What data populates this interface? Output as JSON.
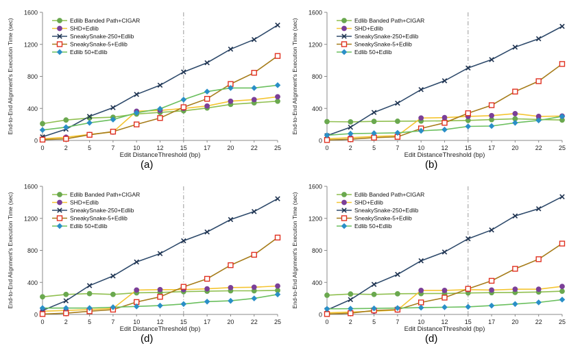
{
  "series_styles": [
    {
      "name": "Edlib Banded Path+CIGAR",
      "line": "#8fbf4f",
      "marker": "circle",
      "fill": "#6aa84f",
      "stroke": "#6aa84f"
    },
    {
      "name": "SHD+Edlib",
      "line": "#f4c430",
      "marker": "circle",
      "fill": "#7b3f98",
      "stroke": "#7b3f98"
    },
    {
      "name": "SneakySnake-250+Edlib",
      "line": "#2e4a6b",
      "marker": "x",
      "fill": "none",
      "stroke": "#1f3350"
    },
    {
      "name": "SneakySnake-5+Edlib",
      "line": "#a67c1a",
      "marker": "square",
      "fill": "#ffffff",
      "stroke": "#e03020"
    },
    {
      "name": "Edlib 50+Edlib",
      "line": "#6abf5e",
      "marker": "diamond",
      "fill": "#2a8fc7",
      "stroke": "#2a8fc7"
    }
  ],
  "chart_data": [
    {
      "type": "line",
      "caption": "(a)",
      "xlabel": "Edit DistanceThreshold (bp)",
      "ylabel": "End-to-End Alignment's Execution Time (sec)",
      "categories": [
        "0",
        "2",
        "5",
        "7",
        "10",
        "12",
        "15",
        "17",
        "20",
        "22",
        "25"
      ],
      "yticks": [
        "0",
        "400",
        "800",
        "1200",
        "1600"
      ],
      "ylim": [
        0,
        1600
      ],
      "vline_at": "15",
      "series": [
        {
          "name": "Edlib Banded Path+CIGAR",
          "values": [
            210,
            255,
            280,
            290,
            330,
            350,
            370,
            405,
            450,
            470,
            490
          ]
        },
        {
          "name": "SHD+Edlib",
          "values": [
            20,
            40,
            75,
            105,
            365,
            375,
            400,
            430,
            490,
            510,
            545
          ]
        },
        {
          "name": "SneakySnake-250+Edlib",
          "values": [
            45,
            140,
            300,
            410,
            575,
            690,
            855,
            970,
            1140,
            1260,
            1440
          ]
        },
        {
          "name": "SneakySnake-5+Edlib",
          "values": [
            10,
            20,
            70,
            110,
            200,
            280,
            415,
            520,
            705,
            845,
            1055
          ]
        },
        {
          "name": "Edlib 50+Edlib",
          "values": [
            130,
            165,
            220,
            260,
            345,
            395,
            510,
            610,
            655,
            655,
            690
          ]
        }
      ]
    },
    {
      "type": "line",
      "caption": "(b)",
      "xlabel": "Edit DistanceThreshold (bp)",
      "ylabel": "End-to-End Alignment's Execution Time (sec)",
      "categories": [
        "0",
        "2",
        "5",
        "7",
        "10",
        "12",
        "15",
        "17",
        "20",
        "22",
        "25"
      ],
      "yticks": [
        "0",
        "400",
        "800",
        "1200",
        "1600"
      ],
      "ylim": [
        0,
        1600
      ],
      "vline_at": "15",
      "series": [
        {
          "name": "Edlib Banded Path+CIGAR",
          "values": [
            235,
            232,
            238,
            240,
            242,
            245,
            250,
            260,
            270,
            262,
            255
          ]
        },
        {
          "name": "SHD+Edlib",
          "values": [
            20,
            35,
            50,
            60,
            280,
            285,
            300,
            310,
            335,
            300,
            305
          ]
        },
        {
          "name": "SneakySnake-250+Edlib",
          "values": [
            60,
            165,
            350,
            465,
            635,
            745,
            905,
            1010,
            1165,
            1270,
            1425
          ]
        },
        {
          "name": "SneakySnake-5+Edlib",
          "values": [
            5,
            15,
            35,
            45,
            150,
            220,
            340,
            440,
            610,
            740,
            955
          ]
        },
        {
          "name": "Edlib 50+Edlib",
          "values": [
            65,
            85,
            90,
            95,
            120,
            135,
            175,
            180,
            220,
            250,
            300
          ]
        }
      ]
    },
    {
      "type": "line",
      "caption": "(d)",
      "xlabel": "Edit DistanceThreshold (bp)",
      "ylabel": "End-to-End Alignment's Execution Time (sec)",
      "categories": [
        "0",
        "2",
        "5",
        "7",
        "10",
        "12",
        "15",
        "17",
        "20",
        "22",
        "25"
      ],
      "yticks": [
        "0",
        "400",
        "800",
        "1200",
        "1600"
      ],
      "ylim": [
        0,
        1600
      ],
      "vline_at": "15",
      "series": [
        {
          "name": "Edlib Banded Path+CIGAR",
          "values": [
            220,
            250,
            260,
            250,
            270,
            275,
            285,
            290,
            295,
            295,
            300
          ]
        },
        {
          "name": "SHD+Edlib",
          "values": [
            40,
            50,
            60,
            75,
            305,
            310,
            310,
            320,
            335,
            340,
            355
          ]
        },
        {
          "name": "SneakySnake-250+Edlib",
          "values": [
            50,
            170,
            360,
            480,
            655,
            760,
            920,
            1030,
            1185,
            1285,
            1445
          ]
        },
        {
          "name": "SneakySnake-5+Edlib",
          "values": [
            5,
            15,
            40,
            60,
            155,
            220,
            345,
            445,
            615,
            745,
            960
          ]
        },
        {
          "name": "Edlib 50+Edlib",
          "values": [
            80,
            80,
            80,
            90,
            100,
            110,
            130,
            160,
            170,
            200,
            250
          ]
        }
      ]
    },
    {
      "type": "line",
      "caption": "(d)",
      "xlabel": "Edit DistanceThreshold (bp)",
      "ylabel": "End-to-End Alignment's Execution Time (sec)",
      "categories": [
        "0",
        "2",
        "5",
        "7",
        "10",
        "12",
        "15",
        "17",
        "20",
        "22",
        "25"
      ],
      "yticks": [
        "0",
        "400",
        "800",
        "1200",
        "1600"
      ],
      "ylim": [
        0,
        1600
      ],
      "vline_at": "15",
      "series": [
        {
          "name": "Edlib Banded Path+CIGAR",
          "values": [
            240,
            255,
            250,
            258,
            260,
            262,
            268,
            272,
            275,
            280,
            290
          ]
        },
        {
          "name": "SHD+Edlib",
          "values": [
            20,
            30,
            40,
            55,
            300,
            300,
            310,
            305,
            315,
            315,
            350
          ]
        },
        {
          "name": "SneakySnake-250+Edlib",
          "values": [
            55,
            185,
            375,
            500,
            670,
            780,
            945,
            1055,
            1230,
            1320,
            1470
          ]
        },
        {
          "name": "SneakySnake-5+Edlib",
          "values": [
            5,
            15,
            50,
            60,
            150,
            210,
            320,
            420,
            570,
            690,
            885
          ]
        },
        {
          "name": "Edlib 50+Edlib",
          "values": [
            70,
            72,
            75,
            80,
            85,
            90,
            95,
            110,
            130,
            150,
            185
          ]
        }
      ]
    }
  ]
}
